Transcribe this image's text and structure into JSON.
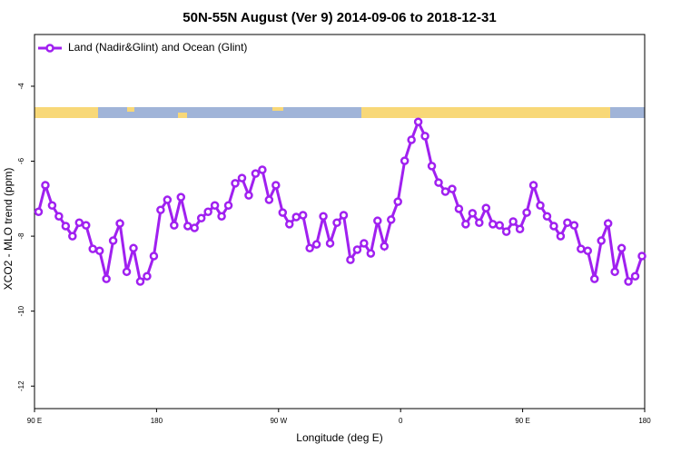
{
  "chart_data": {
    "type": "line",
    "title": "50N-55N August (Ver 9)   2014-09-06 to 2018-12-31",
    "x_label": "Longitude (deg E)",
    "y_label": "XCO2 - MLO trend (ppm)",
    "x": [
      93,
      98,
      103,
      108,
      113,
      118,
      123,
      128,
      133,
      138,
      143,
      148,
      153,
      158,
      163,
      168,
      173,
      178,
      183,
      188,
      193,
      198,
      203,
      208,
      213,
      218,
      223,
      228,
      233,
      238,
      243,
      248,
      253,
      258,
      263,
      268,
      273,
      278,
      283,
      288,
      293,
      298,
      303,
      308,
      313,
      318,
      323,
      328,
      333,
      338,
      343,
      348,
      353,
      358,
      363,
      368,
      373,
      378,
      383,
      388,
      393,
      398,
      403,
      408,
      413,
      418,
      423,
      428,
      433,
      438,
      443,
      448,
      453,
      458,
      463,
      468,
      473,
      478,
      483,
      488,
      493,
      498,
      503,
      508,
      513,
      518,
      523,
      528,
      533,
      538
    ],
    "series": [
      {
        "name": "Land (Nadir&Glint) and Ocean (Glint)",
        "color": "#a020f0",
        "values": [
          -7.35,
          -6.64,
          -7.18,
          -7.47,
          -7.73,
          -8.0,
          -7.64,
          -7.71,
          -8.34,
          -8.39,
          -9.14,
          -8.12,
          -7.66,
          -8.95,
          -8.32,
          -9.21,
          -9.07,
          -8.53,
          -7.3,
          -7.03,
          -7.71,
          -6.96,
          -7.73,
          -7.78,
          -7.52,
          -7.35,
          -7.18,
          -7.47,
          -7.18,
          -6.59,
          -6.45,
          -6.91,
          -6.33,
          -6.23,
          -7.03,
          -6.64,
          -7.37,
          -7.68,
          -7.49,
          -7.44,
          -8.32,
          -8.22,
          -7.47,
          -8.19,
          -7.64,
          -7.44,
          -8.63,
          -8.36,
          -8.19,
          -8.46,
          -7.59,
          -8.27,
          -7.56,
          -7.08,
          -5.99,
          -5.43,
          -4.95,
          -5.33,
          -6.13,
          -6.57,
          -6.81,
          -6.74,
          -7.27,
          -7.68,
          -7.39,
          -7.64,
          -7.25,
          -7.68,
          -7.71,
          -7.88,
          -7.61,
          -7.81,
          -7.37,
          -6.64,
          -7.18,
          -7.47,
          -7.73,
          -8.0,
          -7.64,
          -7.71,
          -8.34,
          -8.39,
          -9.14,
          -8.12,
          -7.66,
          -8.95,
          -8.32,
          -9.21,
          -9.07,
          -8.53
        ]
      }
    ],
    "xlim": [
      90,
      540
    ],
    "xticks": [
      {
        "value": 90,
        "label": "90 E"
      },
      180,
      {
        "value": 270,
        "label": "90 W"
      },
      {
        "value": 360,
        "label": "0"
      },
      {
        "value": 450,
        "label": "90 E"
      },
      {
        "value": 540,
        "label": "180"
      }
    ],
    "ylim": [
      -12.6,
      -2.62
    ],
    "yticks": [
      -4,
      -6,
      -8,
      -10,
      -12
    ],
    "legend_position": "upper left"
  }
}
